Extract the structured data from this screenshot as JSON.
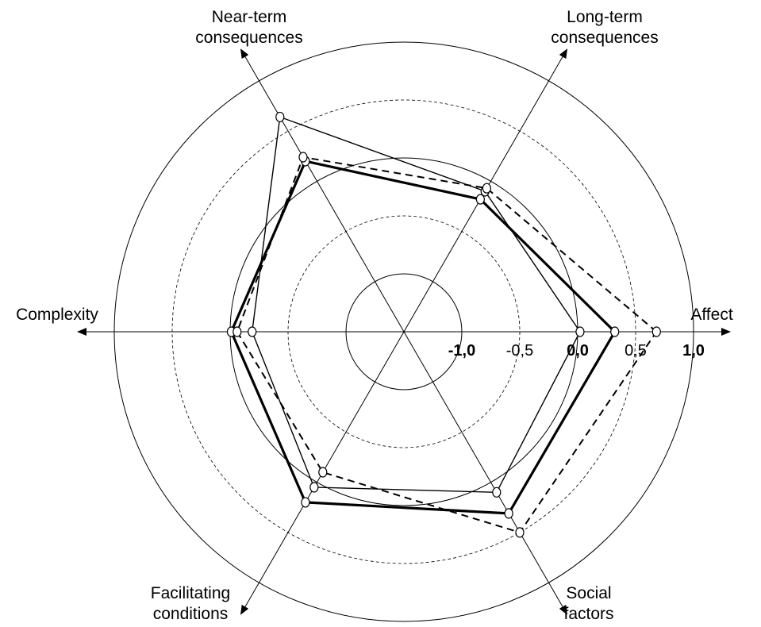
{
  "chart_data": {
    "type": "radar",
    "title": "",
    "axes": [
      {
        "label": [
          "Affect"
        ],
        "angle_deg": 0
      },
      {
        "label": [
          "Long-term",
          "consequences"
        ],
        "angle_deg": 60
      },
      {
        "label": [
          "Near-term",
          "consequences"
        ],
        "angle_deg": 120
      },
      {
        "label": [
          "Complexity"
        ],
        "angle_deg": 180
      },
      {
        "label": [
          "Facilitating",
          "conditions"
        ],
        "angle_deg": 240
      },
      {
        "label": [
          "Social",
          "factors"
        ],
        "angle_deg": 300
      }
    ],
    "rmin": -1.0,
    "rmax": 1.0,
    "solid_rings": [
      -1.0,
      0.0,
      1.0
    ],
    "dashed_rings": [
      -0.5,
      0.5
    ],
    "tick_labels": [
      {
        "value": -1.0,
        "text": "-1,0",
        "bold": true
      },
      {
        "value": -0.5,
        "text": "-0,5",
        "bold": false
      },
      {
        "value": 0.0,
        "text": "0,0",
        "bold": true
      },
      {
        "value": 0.5,
        "text": "0,5",
        "bold": false
      },
      {
        "value": 1.0,
        "text": "1,0",
        "bold": true
      }
    ],
    "series": [
      {
        "style": "thick",
        "values": [
          0.32,
          -0.18,
          0.2,
          -0.01,
          0.2,
          0.31
        ]
      },
      {
        "style": "thin",
        "values": [
          0.02,
          -0.1,
          0.64,
          -0.19,
          0.05,
          0.1
        ]
      },
      {
        "style": "dashed",
        "values": [
          0.68,
          -0.07,
          0.24,
          -0.06,
          -0.1,
          0.5
        ]
      }
    ]
  }
}
